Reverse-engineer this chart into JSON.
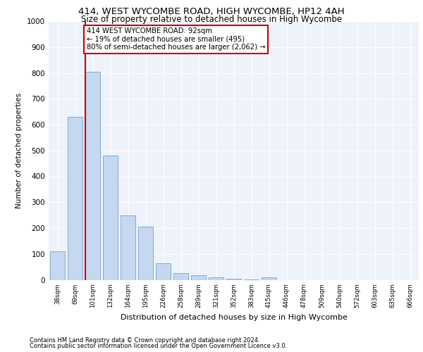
{
  "title1": "414, WEST WYCOMBE ROAD, HIGH WYCOMBE, HP12 4AH",
  "title2": "Size of property relative to detached houses in High Wycombe",
  "xlabel": "Distribution of detached houses by size in High Wycombe",
  "ylabel": "Number of detached properties",
  "categories": [
    "38sqm",
    "69sqm",
    "101sqm",
    "132sqm",
    "164sqm",
    "195sqm",
    "226sqm",
    "258sqm",
    "289sqm",
    "321sqm",
    "352sqm",
    "383sqm",
    "415sqm",
    "446sqm",
    "478sqm",
    "509sqm",
    "540sqm",
    "572sqm",
    "603sqm",
    "635sqm",
    "666sqm"
  ],
  "values": [
    110,
    630,
    805,
    480,
    250,
    205,
    63,
    27,
    18,
    10,
    5,
    2,
    10,
    0,
    0,
    0,
    0,
    0,
    0,
    0,
    0
  ],
  "bar_color": "#c5d8f0",
  "bar_edge_color": "#7aadd4",
  "highlight_index": 2,
  "highlight_line_color": "#cc0000",
  "annotation_text": "414 WEST WYCOMBE ROAD: 92sqm\n← 19% of detached houses are smaller (495)\n80% of semi-detached houses are larger (2,062) →",
  "annotation_box_color": "#cc0000",
  "ylim": [
    0,
    1000
  ],
  "yticks": [
    0,
    100,
    200,
    300,
    400,
    500,
    600,
    700,
    800,
    900,
    1000
  ],
  "background_color": "#eef2fa",
  "footer1": "Contains HM Land Registry data © Crown copyright and database right 2024.",
  "footer2": "Contains public sector information licensed under the Open Government Licence v3.0."
}
